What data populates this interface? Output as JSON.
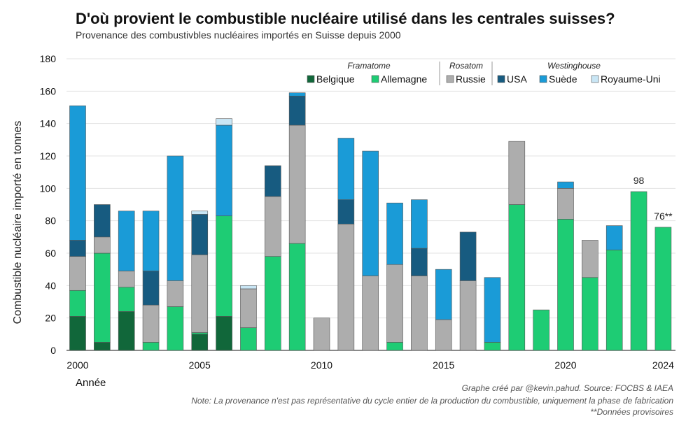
{
  "title": "D'où provient le combustible nucléaire utilisé dans les centrales suisses?",
  "subtitle": "Provenance des combustivbles nucléaires importés en Suisse depuis 2000",
  "notes": {
    "credit": "Graphe créé par @kevin.pahud. Source: FOCBS & IAEA",
    "note": "Note: La provenance n'est pas représentative du cycle entier de la production du combustible, uniquement la phase de fabrication",
    "provisional": "**Données provisoires"
  },
  "chart_data": {
    "type": "bar",
    "stacked": true,
    "title": "D'où provient le combustible nucléaire utilisé dans les centrales suisses?",
    "xlabel": "Année",
    "ylabel": "Combustible nucléaire importé en tonnes",
    "ylim": [
      0,
      180
    ],
    "yticks": [
      0,
      20,
      40,
      60,
      80,
      100,
      120,
      140,
      160,
      180
    ],
    "xtick_labels": [
      "2000",
      "2005",
      "2010",
      "2015",
      "2020",
      "2024"
    ],
    "categories": [
      "2000",
      "2001",
      "2002",
      "2003",
      "2004",
      "2005",
      "2006",
      "2007",
      "2008",
      "2009",
      "2010",
      "2011",
      "2012",
      "2013",
      "2014",
      "2015",
      "2016",
      "2017",
      "2018",
      "2019",
      "2020",
      "2021",
      "2022",
      "2023",
      "2024"
    ],
    "legend_groups": [
      {
        "label": "Framatome",
        "series": [
          "Belgique",
          "Allemagne"
        ]
      },
      {
        "label": "Rosatom",
        "series": [
          "Russie"
        ]
      },
      {
        "label": "Westinghouse",
        "series": [
          "USA",
          "Suède",
          "Royaume-Uni"
        ]
      }
    ],
    "series": [
      {
        "name": "Belgique",
        "color": "#11673a",
        "values": [
          21,
          5,
          24,
          0,
          0,
          10,
          21,
          0,
          0,
          0,
          0,
          0,
          0,
          0,
          0,
          0,
          0,
          0,
          0,
          0,
          0,
          0,
          0,
          0,
          0
        ]
      },
      {
        "name": "Allemagne",
        "color": "#1ecc74",
        "values": [
          16,
          55,
          15,
          5,
          27,
          1,
          62,
          14,
          58,
          66,
          0,
          0,
          0,
          5,
          0,
          0,
          0,
          5,
          90,
          25,
          81,
          45,
          62,
          98,
          76
        ]
      },
      {
        "name": "Russie",
        "color": "#adadad",
        "values": [
          21,
          10,
          10,
          23,
          16,
          48,
          0,
          24,
          37,
          73,
          20,
          78,
          46,
          48,
          46,
          19,
          43,
          0,
          39,
          0,
          19,
          23,
          0,
          0,
          0
        ]
      },
      {
        "name": "USA",
        "color": "#175b80",
        "values": [
          10,
          20,
          0,
          21,
          0,
          25,
          0,
          0,
          19,
          18,
          0,
          15,
          0,
          0,
          17,
          0,
          30,
          0,
          0,
          0,
          0,
          0,
          0,
          0,
          0
        ]
      },
      {
        "name": "Suède",
        "color": "#1a9bd7",
        "values": [
          83,
          0,
          37,
          37,
          77,
          0,
          56,
          0,
          0,
          2,
          0,
          38,
          77,
          38,
          30,
          31,
          0,
          40,
          0,
          0,
          4,
          0,
          15,
          0,
          0
        ]
      },
      {
        "name": "Royaume-Uni",
        "color": "#c9e6f5",
        "values": [
          0,
          0,
          0,
          0,
          0,
          2,
          4,
          2,
          0,
          0,
          0,
          0,
          0,
          0,
          0,
          0,
          0,
          0,
          0,
          0,
          0,
          0,
          0,
          0,
          0
        ]
      }
    ],
    "annotations": [
      {
        "category": "2023",
        "text": "98"
      },
      {
        "category": "2024",
        "text": "76**"
      }
    ]
  }
}
